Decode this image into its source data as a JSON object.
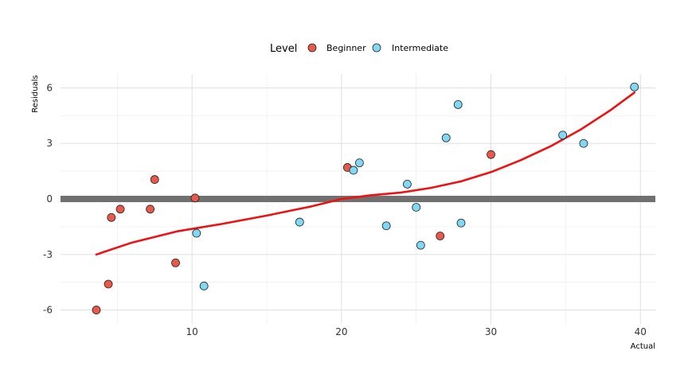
{
  "chart_data": {
    "type": "scatter",
    "xlabel": "Actual",
    "ylabel": "Residuals",
    "xlim": [
      1.2,
      41.0
    ],
    "ylim": [
      -6.75,
      6.75
    ],
    "x_ticks": [
      10,
      20,
      30,
      40
    ],
    "y_ticks": [
      -6,
      -3,
      0,
      3,
      6
    ],
    "y_tick_labels": [
      "-6",
      "-3",
      "0",
      "3",
      "6"
    ],
    "grid": true,
    "legend": {
      "title": "Level",
      "position": "top",
      "entries": [
        "Beginner",
        "Intermediate"
      ]
    },
    "reference_line": {
      "y": 0,
      "color": "#707070"
    },
    "series": [
      {
        "name": "Beginner",
        "color": "#e8594a",
        "points": [
          {
            "x": 3.6,
            "y": -6.0
          },
          {
            "x": 4.4,
            "y": -4.6
          },
          {
            "x": 4.6,
            "y": -1.0
          },
          {
            "x": 5.2,
            "y": -0.55
          },
          {
            "x": 7.2,
            "y": -0.55
          },
          {
            "x": 7.5,
            "y": 1.05
          },
          {
            "x": 8.9,
            "y": -3.45
          },
          {
            "x": 10.2,
            "y": 0.05
          },
          {
            "x": 20.4,
            "y": 1.7
          },
          {
            "x": 26.6,
            "y": -2.0
          },
          {
            "x": 30.0,
            "y": 2.4
          }
        ]
      },
      {
        "name": "Intermediate",
        "color": "#7fd8f4",
        "points": [
          {
            "x": 10.3,
            "y": -1.85
          },
          {
            "x": 10.8,
            "y": -4.7
          },
          {
            "x": 17.2,
            "y": -1.25
          },
          {
            "x": 20.8,
            "y": 1.55
          },
          {
            "x": 21.2,
            "y": 1.95
          },
          {
            "x": 23.0,
            "y": -1.45
          },
          {
            "x": 24.4,
            "y": 0.8
          },
          {
            "x": 25.0,
            "y": -0.45
          },
          {
            "x": 25.3,
            "y": -2.5
          },
          {
            "x": 27.0,
            "y": 3.3
          },
          {
            "x": 27.8,
            "y": 5.1
          },
          {
            "x": 28.0,
            "y": -1.3
          },
          {
            "x": 34.8,
            "y": 3.45
          },
          {
            "x": 36.2,
            "y": 3.0
          },
          {
            "x": 39.6,
            "y": 6.05
          }
        ]
      }
    ],
    "trend_line": {
      "color": "#ee1111",
      "points": [
        {
          "x": 3.6,
          "y": -3.0
        },
        {
          "x": 6.0,
          "y": -2.35
        },
        {
          "x": 9.0,
          "y": -1.75
        },
        {
          "x": 12.0,
          "y": -1.35
        },
        {
          "x": 15.0,
          "y": -0.9
        },
        {
          "x": 18.0,
          "y": -0.4
        },
        {
          "x": 20.0,
          "y": 0.0
        },
        {
          "x": 22.0,
          "y": 0.2
        },
        {
          "x": 24.0,
          "y": 0.35
        },
        {
          "x": 26.0,
          "y": 0.6
        },
        {
          "x": 28.0,
          "y": 0.95
        },
        {
          "x": 30.0,
          "y": 1.45
        },
        {
          "x": 32.0,
          "y": 2.1
        },
        {
          "x": 34.0,
          "y": 2.85
        },
        {
          "x": 36.0,
          "y": 3.75
        },
        {
          "x": 38.0,
          "y": 4.8
        },
        {
          "x": 39.6,
          "y": 5.75
        }
      ]
    }
  }
}
